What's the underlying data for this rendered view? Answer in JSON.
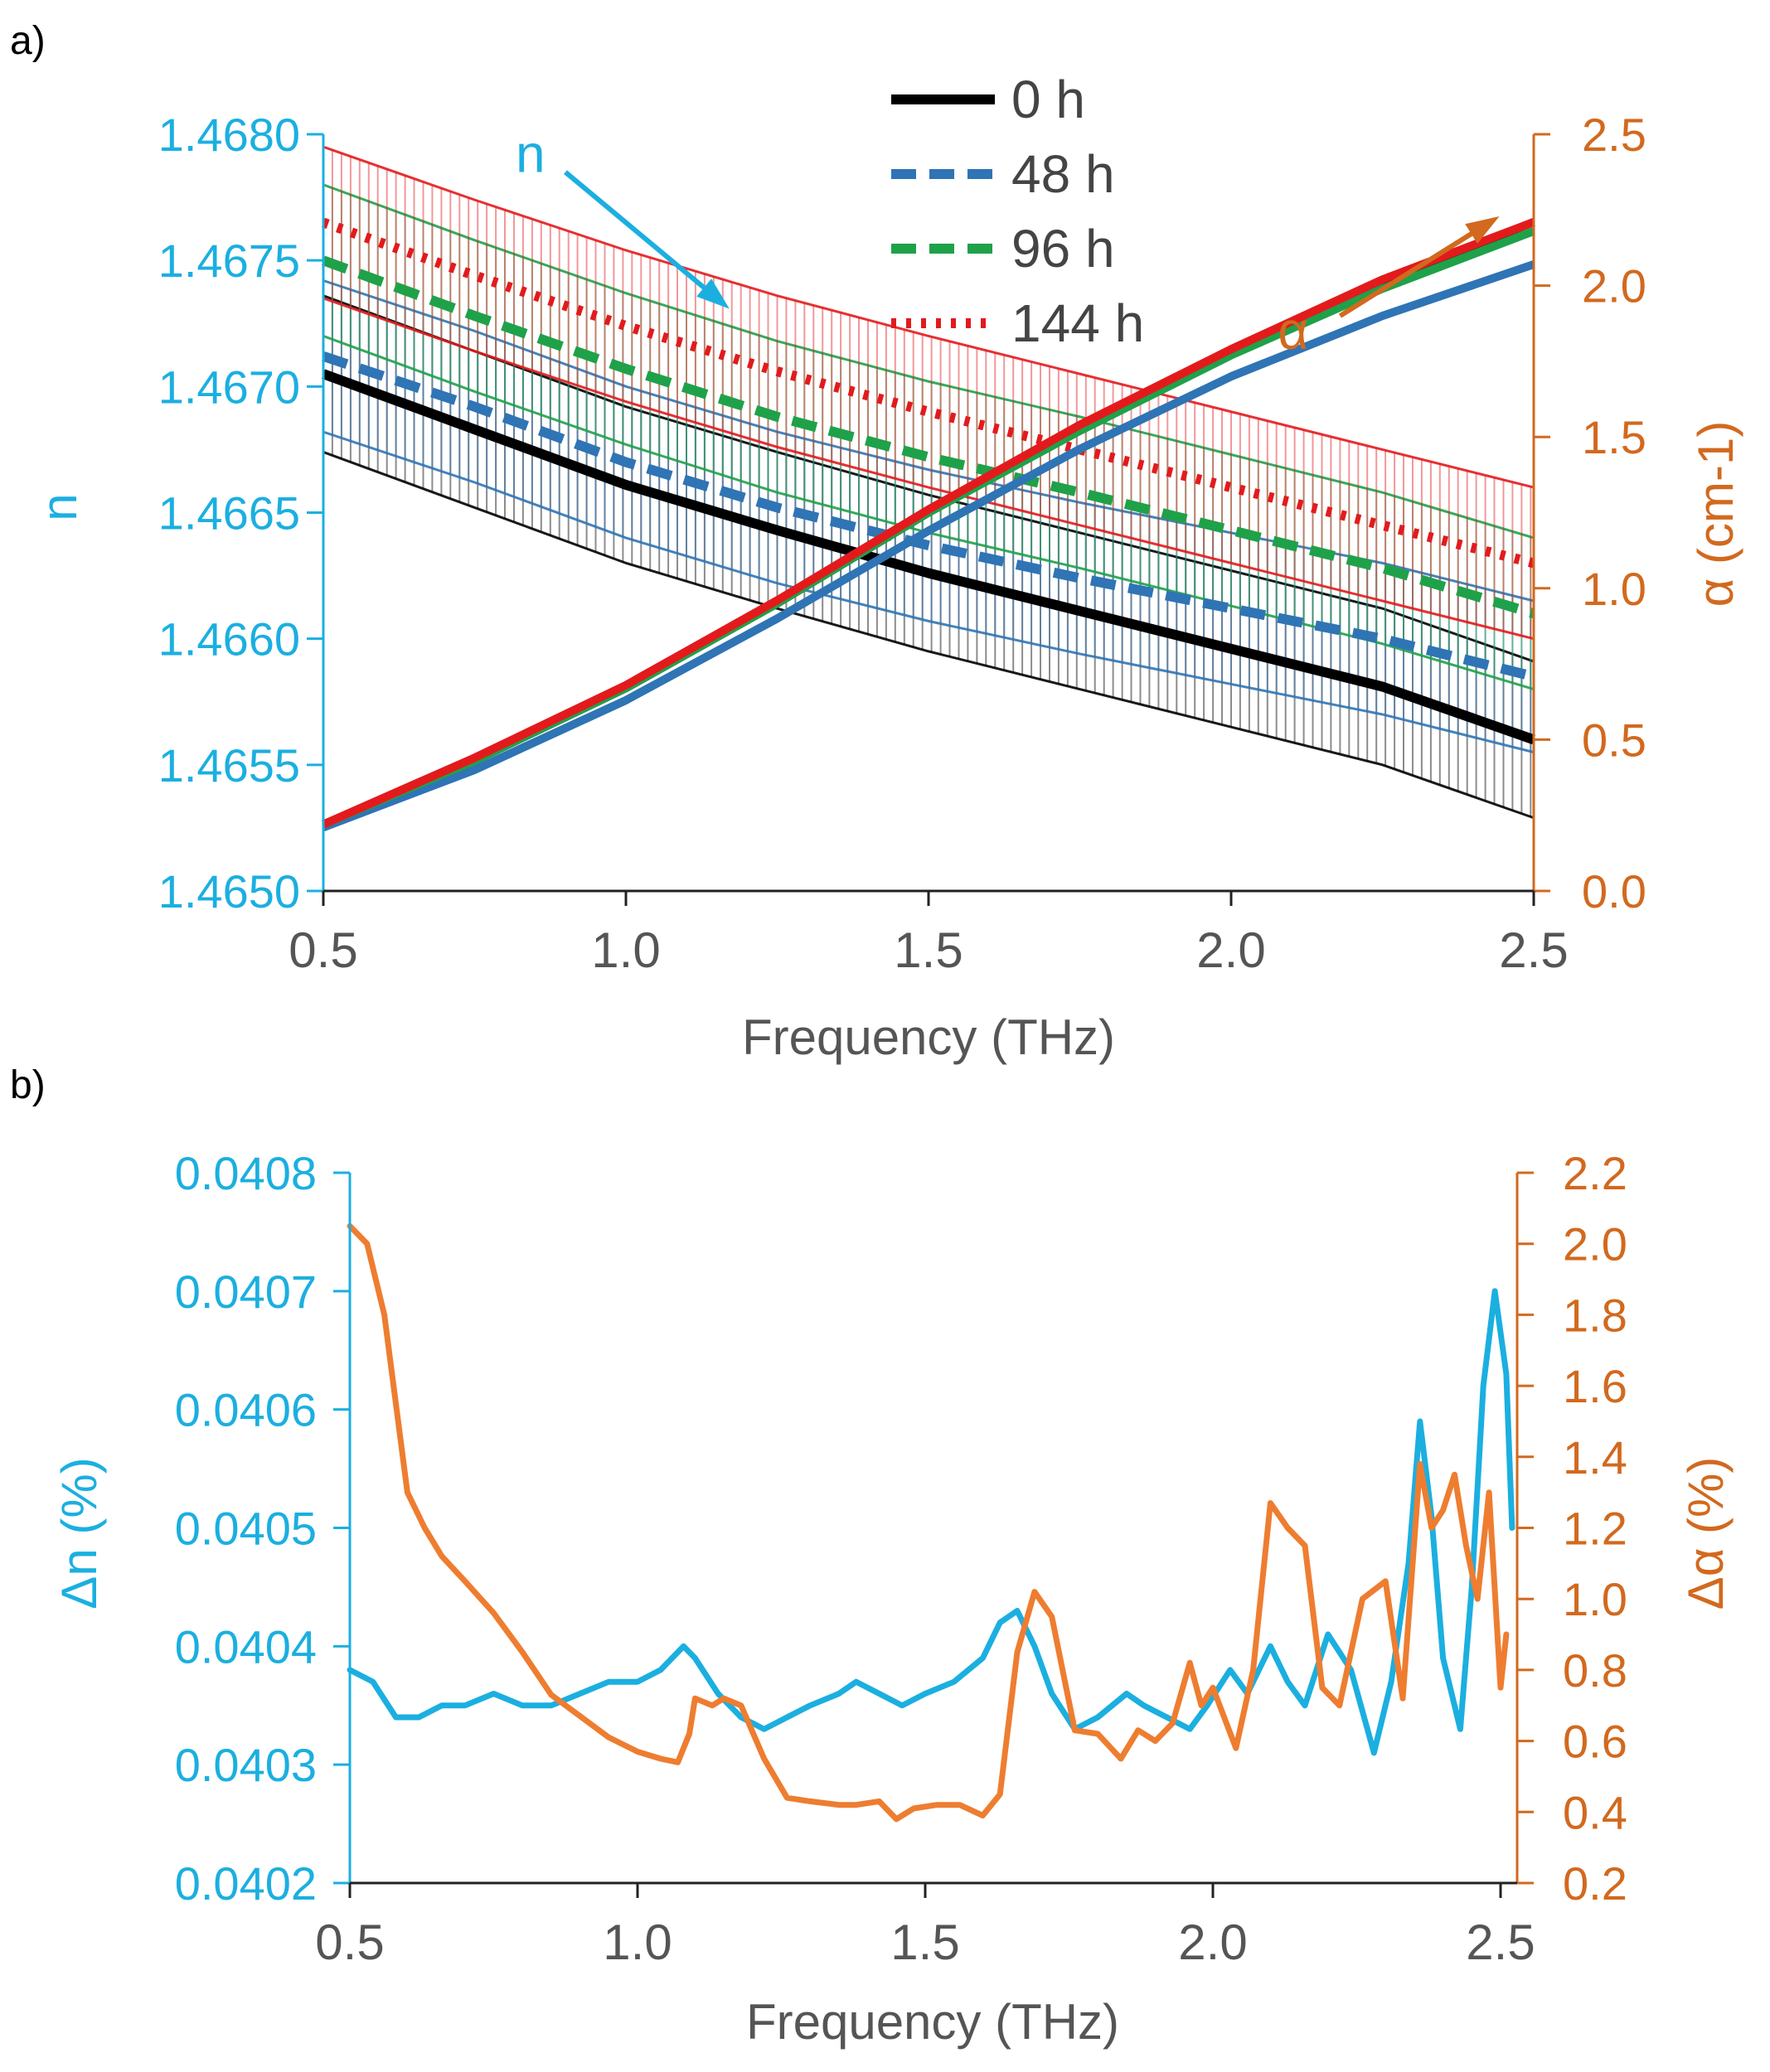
{
  "panels": {
    "a": {
      "label": "a)"
    },
    "b": {
      "label": "b)"
    }
  },
  "colors": {
    "n_axis": "#1BAFE0",
    "alpha_axis": "#D2691E",
    "frame": "#333333",
    "s0": "#000000",
    "s48": "#2F74B5",
    "s96": "#1FA14A",
    "s144": "#E31A1C",
    "b_n": "#1BAFE0",
    "b_alpha": "#EE7D30"
  },
  "chart_data": [
    {
      "type": "line",
      "panel": "a",
      "xlabel": "Frequency (THz)",
      "ylabel": "n",
      "y2label": "α (cm-1)",
      "xlim": [
        0.5,
        2.5
      ],
      "ylim": [
        1.465,
        1.468
      ],
      "y2lim": [
        0.0,
        2.5
      ],
      "xticks": [
        "0.5",
        "1.0",
        "1.5",
        "2.0",
        "2.5"
      ],
      "yticks": [
        "1.4650",
        "1.4655",
        "1.4660",
        "1.4665",
        "1.4670",
        "1.4675",
        "1.4680"
      ],
      "y2ticks": [
        "0.0",
        "0.5",
        "1.0",
        "1.5",
        "2.0",
        "2.5"
      ],
      "legend_position": "top-center",
      "annotations": [
        {
          "text": "n",
          "arrow_from": [
            0.9,
            1.46785
          ],
          "arrow_to": [
            1.15,
            1.46735
          ]
        },
        {
          "text": "α",
          "arrow_from": [
            2.18,
            1.9
          ],
          "arrow_to": [
            2.42,
            2.2
          ]
        }
      ],
      "x": [
        0.5,
        0.75,
        1.0,
        1.25,
        1.5,
        1.75,
        2.0,
        2.25,
        2.5
      ],
      "series": [
        {
          "name": "0 h",
          "key": "s0",
          "style": "solid",
          "axis": "n",
          "values": [
            1.46705,
            1.46683,
            1.46661,
            1.46643,
            1.46626,
            1.46611,
            1.46596,
            1.46581,
            1.4656
          ],
          "error": 0.00031
        },
        {
          "name": "48 h",
          "key": "s48",
          "style": "dashed",
          "axis": "n",
          "values": [
            1.46712,
            1.46692,
            1.4667,
            1.46652,
            1.46637,
            1.46624,
            1.46612,
            1.466,
            1.46585
          ],
          "error": 0.0003
        },
        {
          "name": "96 h",
          "key": "s96",
          "style": "dashed",
          "axis": "n",
          "values": [
            1.4675,
            1.46728,
            1.46707,
            1.46688,
            1.46672,
            1.46658,
            1.46643,
            1.46628,
            1.4661
          ],
          "error": 0.0003
        },
        {
          "name": "144 h",
          "key": "s144",
          "style": "dotted",
          "axis": "n",
          "values": [
            1.46765,
            1.46744,
            1.46724,
            1.46706,
            1.4669,
            1.46675,
            1.4666,
            1.46645,
            1.4663
          ],
          "error": 0.0003
        },
        {
          "key": "s0",
          "style": "solid",
          "axis": "alpha",
          "values": [
            0.22,
            0.43,
            0.67,
            0.95,
            1.25,
            1.53,
            1.78,
            2.01,
            2.21
          ]
        },
        {
          "key": "s48",
          "style": "solid",
          "axis": "alpha",
          "values": [
            0.21,
            0.4,
            0.63,
            0.9,
            1.19,
            1.46,
            1.7,
            1.9,
            2.07
          ]
        },
        {
          "key": "s96",
          "style": "solid",
          "axis": "alpha",
          "values": [
            0.22,
            0.43,
            0.67,
            0.95,
            1.25,
            1.52,
            1.77,
            1.99,
            2.18
          ]
        },
        {
          "key": "s144",
          "style": "solid",
          "axis": "alpha",
          "values": [
            0.22,
            0.44,
            0.68,
            0.96,
            1.26,
            1.54,
            1.79,
            2.02,
            2.21
          ]
        }
      ]
    },
    {
      "type": "line",
      "panel": "b",
      "xlabel": "Frequency (THz)",
      "ylabel": "Δn (%)",
      "y2label": "Δα (%)",
      "xlim": [
        0.5,
        2.5
      ],
      "ylim": [
        0.0402,
        0.0408
      ],
      "y2lim": [
        0.2,
        2.2
      ],
      "xticks": [
        "0.5",
        "1.0",
        "1.5",
        "2.0",
        "2.5"
      ],
      "yticks": [
        "0.0402",
        "0.0403",
        "0.0404",
        "0.0405",
        "0.0406",
        "0.0407",
        "0.0408"
      ],
      "y2ticks": [
        "0.2",
        "0.4",
        "0.6",
        "0.8",
        "1.0",
        "1.2",
        "1.4",
        "1.6",
        "1.8",
        "2.0",
        "2.2"
      ],
      "series": [
        {
          "key": "b_n",
          "axis": "n",
          "points": [
            [
              0.5,
              0.04038
            ],
            [
              0.54,
              0.04037
            ],
            [
              0.58,
              0.04034
            ],
            [
              0.62,
              0.04034
            ],
            [
              0.66,
              0.04035
            ],
            [
              0.7,
              0.04035
            ],
            [
              0.75,
              0.04036
            ],
            [
              0.8,
              0.04035
            ],
            [
              0.85,
              0.04035
            ],
            [
              0.9,
              0.04036
            ],
            [
              0.95,
              0.04037
            ],
            [
              1.0,
              0.04037
            ],
            [
              1.04,
              0.04038
            ],
            [
              1.08,
              0.0404
            ],
            [
              1.1,
              0.04039
            ],
            [
              1.14,
              0.04036
            ],
            [
              1.18,
              0.04034
            ],
            [
              1.22,
              0.04033
            ],
            [
              1.26,
              0.04034
            ],
            [
              1.3,
              0.04035
            ],
            [
              1.35,
              0.04036
            ],
            [
              1.38,
              0.04037
            ],
            [
              1.42,
              0.04036
            ],
            [
              1.46,
              0.04035
            ],
            [
              1.5,
              0.04036
            ],
            [
              1.55,
              0.04037
            ],
            [
              1.6,
              0.04039
            ],
            [
              1.63,
              0.04042
            ],
            [
              1.66,
              0.04043
            ],
            [
              1.69,
              0.0404
            ],
            [
              1.72,
              0.04036
            ],
            [
              1.76,
              0.04033
            ],
            [
              1.8,
              0.04034
            ],
            [
              1.85,
              0.04036
            ],
            [
              1.88,
              0.04035
            ],
            [
              1.92,
              0.04034
            ],
            [
              1.96,
              0.04033
            ],
            [
              1.99,
              0.04035
            ],
            [
              2.03,
              0.04038
            ],
            [
              2.06,
              0.04036
            ],
            [
              2.1,
              0.0404
            ],
            [
              2.13,
              0.04037
            ],
            [
              2.16,
              0.04035
            ],
            [
              2.2,
              0.04041
            ],
            [
              2.24,
              0.04038
            ],
            [
              2.28,
              0.04031
            ],
            [
              2.31,
              0.04037
            ],
            [
              2.34,
              0.04047
            ],
            [
              2.36,
              0.04059
            ],
            [
              2.38,
              0.04051
            ],
            [
              2.4,
              0.04039
            ],
            [
              2.43,
              0.04033
            ],
            [
              2.45,
              0.04045
            ],
            [
              2.47,
              0.04062
            ],
            [
              2.49,
              0.0407
            ],
            [
              2.51,
              0.04063
            ],
            [
              2.52,
              0.0405
            ]
          ]
        },
        {
          "key": "b_alpha",
          "axis": "alpha",
          "points": [
            [
              0.5,
              2.05
            ],
            [
              0.53,
              2.0
            ],
            [
              0.56,
              1.8
            ],
            [
              0.58,
              1.55
            ],
            [
              0.6,
              1.3
            ],
            [
              0.63,
              1.2
            ],
            [
              0.66,
              1.12
            ],
            [
              0.7,
              1.05
            ],
            [
              0.75,
              0.96
            ],
            [
              0.8,
              0.85
            ],
            [
              0.85,
              0.73
            ],
            [
              0.9,
              0.67
            ],
            [
              0.95,
              0.61
            ],
            [
              1.0,
              0.57
            ],
            [
              1.04,
              0.55
            ],
            [
              1.07,
              0.54
            ],
            [
              1.09,
              0.62
            ],
            [
              1.1,
              0.72
            ],
            [
              1.13,
              0.7
            ],
            [
              1.15,
              0.72
            ],
            [
              1.18,
              0.7
            ],
            [
              1.22,
              0.55
            ],
            [
              1.26,
              0.44
            ],
            [
              1.3,
              0.43
            ],
            [
              1.35,
              0.42
            ],
            [
              1.38,
              0.42
            ],
            [
              1.42,
              0.43
            ],
            [
              1.45,
              0.38
            ],
            [
              1.48,
              0.41
            ],
            [
              1.52,
              0.42
            ],
            [
              1.56,
              0.42
            ],
            [
              1.6,
              0.39
            ],
            [
              1.63,
              0.45
            ],
            [
              1.66,
              0.85
            ],
            [
              1.69,
              1.02
            ],
            [
              1.72,
              0.95
            ],
            [
              1.76,
              0.63
            ],
            [
              1.8,
              0.62
            ],
            [
              1.84,
              0.55
            ],
            [
              1.87,
              0.63
            ],
            [
              1.9,
              0.6
            ],
            [
              1.93,
              0.65
            ],
            [
              1.96,
              0.82
            ],
            [
              1.98,
              0.7
            ],
            [
              2.0,
              0.75
            ],
            [
              2.04,
              0.58
            ],
            [
              2.07,
              0.8
            ],
            [
              2.1,
              1.27
            ],
            [
              2.13,
              1.2
            ],
            [
              2.16,
              1.15
            ],
            [
              2.19,
              0.75
            ],
            [
              2.22,
              0.7
            ],
            [
              2.26,
              1.0
            ],
            [
              2.3,
              1.05
            ],
            [
              2.33,
              0.72
            ],
            [
              2.36,
              1.38
            ],
            [
              2.38,
              1.2
            ],
            [
              2.4,
              1.25
            ],
            [
              2.42,
              1.35
            ],
            [
              2.44,
              1.15
            ],
            [
              2.46,
              1.0
            ],
            [
              2.48,
              1.3
            ],
            [
              2.5,
              0.75
            ],
            [
              2.51,
              0.9
            ]
          ]
        }
      ]
    }
  ]
}
